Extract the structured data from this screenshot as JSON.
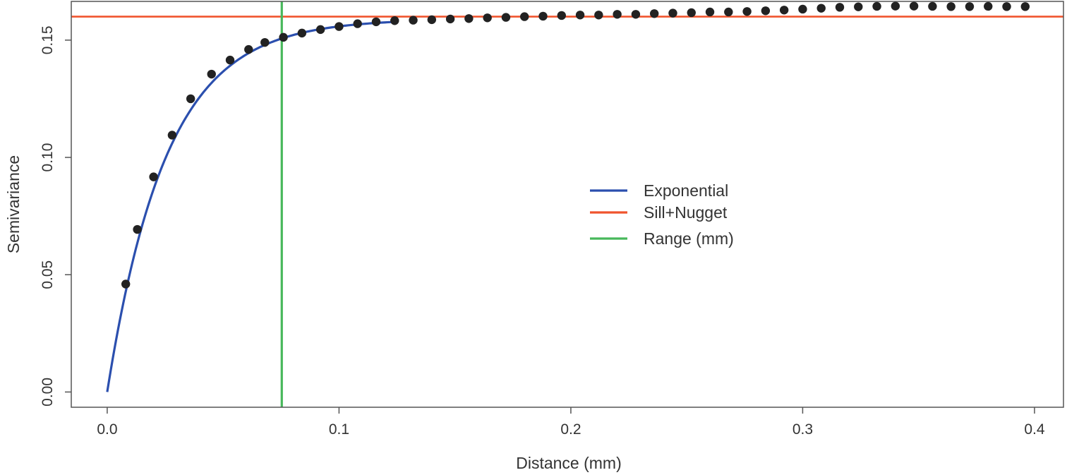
{
  "chart_data": {
    "type": "scatter",
    "xlabel": "Distance (mm)",
    "ylabel": "Semivariance",
    "xlim": [
      -0.0155,
      0.4125
    ],
    "ylim": [
      -0.0065,
      0.1665
    ],
    "x_ticks": [
      0.0,
      0.1,
      0.2,
      0.3,
      0.4
    ],
    "x_tick_labels": [
      "0.0",
      "0.1",
      "0.2",
      "0.3",
      "0.4"
    ],
    "y_ticks": [
      0.0,
      0.05,
      0.1,
      0.15
    ],
    "y_tick_labels": [
      "0.00",
      "0.05",
      "0.10",
      "0.15"
    ],
    "grid": false,
    "legend_position": "center-right",
    "legend": [
      {
        "label": "Exponential",
        "color": "#2b4fae"
      },
      {
        "label": "Sill+Nugget",
        "color": "#f0542d"
      },
      {
        "label": "Range (mm)",
        "color": "#47b85b"
      }
    ],
    "series": [
      {
        "type": "scatter",
        "color": "#222222",
        "x": [
          0.008,
          0.013,
          0.02,
          0.028,
          0.036,
          0.045,
          0.053,
          0.061,
          0.068,
          0.076,
          0.084,
          0.092,
          0.1,
          0.108,
          0.116,
          0.124,
          0.132,
          0.14,
          0.148,
          0.156,
          0.164,
          0.172,
          0.18,
          0.188,
          0.196,
          0.204,
          0.212,
          0.22,
          0.228,
          0.236,
          0.244,
          0.252,
          0.26,
          0.268,
          0.276,
          0.284,
          0.292,
          0.3,
          0.308,
          0.316,
          0.324,
          0.332,
          0.34,
          0.348,
          0.356,
          0.364,
          0.372,
          0.38,
          0.388,
          0.396
        ],
        "y": [
          0.046,
          0.0693,
          0.0917,
          0.1095,
          0.125,
          0.1355,
          0.1415,
          0.146,
          0.149,
          0.1512,
          0.153,
          0.1545,
          0.1558,
          0.157,
          0.1578,
          0.1583,
          0.1585,
          0.1587,
          0.159,
          0.1592,
          0.1595,
          0.1597,
          0.16,
          0.1602,
          0.1605,
          0.1607,
          0.1607,
          0.161,
          0.161,
          0.1613,
          0.1615,
          0.1617,
          0.162,
          0.162,
          0.1622,
          0.1625,
          0.1628,
          0.1632,
          0.1636,
          0.164,
          0.1642,
          0.1644,
          0.1645,
          0.1645,
          0.1644,
          0.1643,
          0.1643,
          0.1644,
          0.1643,
          0.1643
        ]
      },
      {
        "type": "line",
        "name": "Exponential",
        "color": "#2b4fae",
        "model": "exponential",
        "sill": 0.159,
        "range_param": 0.0255,
        "x_from": 0.0,
        "x_to": 0.123
      },
      {
        "type": "hline",
        "name": "Sill+Nugget",
        "color": "#f0542d",
        "y": 0.16
      },
      {
        "type": "vline",
        "name": "Range (mm)",
        "color": "#47b85b",
        "x": 0.0753
      }
    ]
  }
}
